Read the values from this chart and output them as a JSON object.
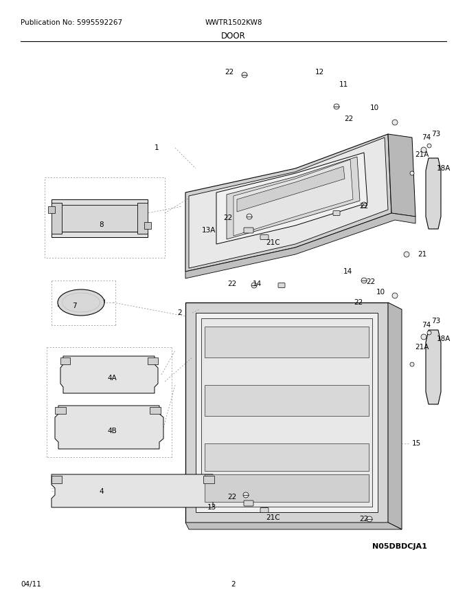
{
  "title_left": "Publication No: 5995592267",
  "title_center": "WWTR1502KW8",
  "subtitle": "DOOR",
  "footer_left": "04/11",
  "footer_center": "2",
  "image_id": "N05DBDCJA1",
  "bg_color": "#ffffff",
  "lc": "#000000",
  "gray1": "#c8c8c8",
  "gray2": "#e0e0e0",
  "gray3": "#b0b0b0",
  "gray4": "#f0f0f0",
  "fig_width": 6.8,
  "fig_height": 8.8,
  "dpi": 100
}
